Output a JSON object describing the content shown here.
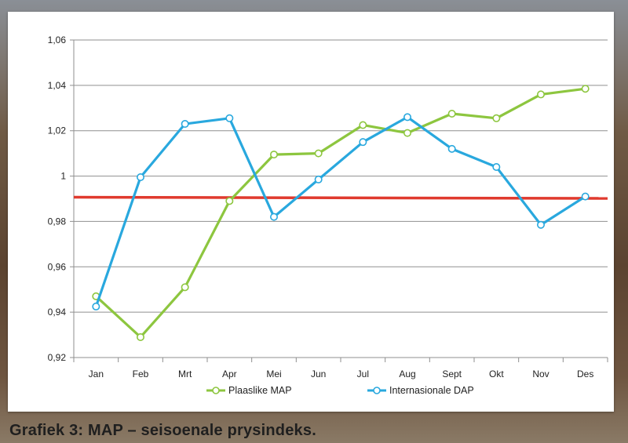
{
  "caption": "Grafiek 3: MAP – seisoenale prysindeks.",
  "chart_data": {
    "type": "line",
    "categories": [
      "Jan",
      "Feb",
      "Mrt",
      "Apr",
      "Mei",
      "Jun",
      "Jul",
      "Aug",
      "Sept",
      "Okt",
      "Nov",
      "Des"
    ],
    "ylim": [
      0.92,
      1.06
    ],
    "yticks": [
      0.92,
      0.94,
      0.96,
      0.98,
      1.0,
      1.02,
      1.04,
      1.06
    ],
    "ytick_labels": [
      "0,92",
      "0,94",
      "0,96",
      "0,98",
      "1",
      "1,02",
      "1,04",
      "1,06"
    ],
    "grid": "horizontal",
    "legend_position": "bottom",
    "reference_line": {
      "value": 0.9905,
      "color": "#e03a2e"
    },
    "series": [
      {
        "name": "Plaaslike MAP",
        "color": "#8dc63f",
        "values": [
          0.947,
          0.929,
          0.951,
          0.989,
          1.0095,
          1.01,
          1.0225,
          1.019,
          1.0275,
          1.0255,
          1.036,
          1.0385
        ]
      },
      {
        "name": "Internasionale DAP",
        "color": "#29a8de",
        "values": [
          0.9425,
          0.9995,
          1.023,
          1.0255,
          0.982,
          0.9985,
          1.015,
          1.026,
          1.012,
          1.004,
          0.9785,
          0.991
        ]
      }
    ]
  }
}
